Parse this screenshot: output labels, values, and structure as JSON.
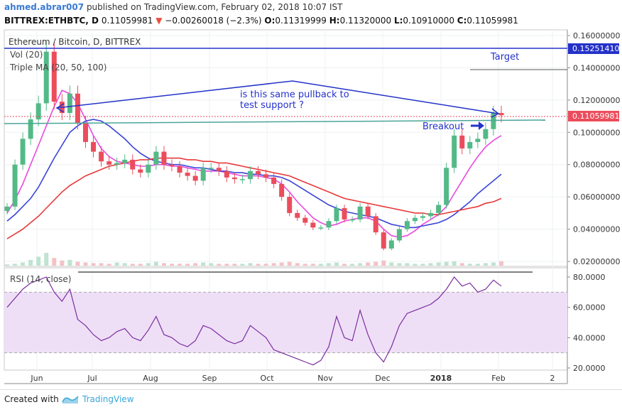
{
  "header": {
    "user": "ahmed.abrar007",
    "published_text": "published on TradingView.com, February 02, 2018 10:07 IST",
    "symbol": "BITTREX:ETHBTC, D",
    "last": "0.11059981",
    "change": "−0.00260018 (−2.3%)",
    "o_label": "O:",
    "o": "0.11319999",
    "h_label": "H:",
    "h": "0.11320000",
    "l_label": "L:",
    "l": "0.10910000",
    "c_label": "C:",
    "c": "0.11059981"
  },
  "legend": {
    "title": "Ethereum / Bitcoin, D, BITTREX",
    "vol": "Vol (20)",
    "ma": "Triple MA (20, 50, 100)",
    "rsi": "RSI (14, close)"
  },
  "annotations": {
    "target": "Target",
    "question_line1": "is this same pullback to",
    "question_line2": "test support ?",
    "breakout": "Breakout"
  },
  "price_badges": {
    "target_price": "0.15251410",
    "current_price": "0.11059981"
  },
  "colors": {
    "up": "#53b987",
    "down": "#eb4d5c",
    "ma20": "#e84ae0",
    "ma50": "#3a44d6",
    "ma100": "#e8393a",
    "rsi": "#7b2e9e",
    "annotation": "#2432c9"
  },
  "chart_data": [
    {
      "type": "line",
      "title": "Ethereum / Bitcoin, D, BITTREX",
      "x_labels": [
        "Jun",
        "Jul",
        "Aug",
        "Sep",
        "Oct",
        "Nov",
        "Dec",
        "2018",
        "Feb",
        "2"
      ],
      "y_ticks": [
        "0.16000000",
        "0.14000000",
        "0.12000000",
        "0.10000000",
        "0.08000000",
        "0.06000000",
        "0.04000000",
        "0.02000000"
      ],
      "ylim": [
        0.015,
        0.165
      ],
      "series": [
        {
          "name": "Close",
          "values": [
            0.054,
            0.08,
            0.096,
            0.108,
            0.118,
            0.15,
            0.119,
            0.112,
            0.124,
            0.106,
            0.094,
            0.088,
            0.082,
            0.08,
            0.081,
            0.083,
            0.077,
            0.075,
            0.08,
            0.088,
            0.08,
            0.079,
            0.075,
            0.073,
            0.07,
            0.078,
            0.078,
            0.076,
            0.072,
            0.071,
            0.071,
            0.076,
            0.074,
            0.072,
            0.068,
            0.06,
            0.05,
            0.047,
            0.044,
            0.041,
            0.041,
            0.045,
            0.053,
            0.046,
            0.046,
            0.054,
            0.048,
            0.038,
            0.028,
            0.033,
            0.04,
            0.045,
            0.047,
            0.048,
            0.05,
            0.055,
            0.078,
            0.098,
            0.09,
            0.094,
            0.096,
            0.102,
            0.112,
            0.1106
          ]
        },
        {
          "name": "MA20",
          "values": [
            0.05,
            0.058,
            0.068,
            0.08,
            0.092,
            0.104,
            0.116,
            0.126,
            0.124,
            0.118,
            0.108,
            0.098,
            0.09,
            0.085,
            0.082,
            0.081,
            0.08,
            0.079,
            0.079,
            0.08,
            0.08,
            0.079,
            0.079,
            0.078,
            0.077,
            0.076,
            0.076,
            0.076,
            0.075,
            0.074,
            0.073,
            0.073,
            0.073,
            0.072,
            0.071,
            0.068,
            0.063,
            0.057,
            0.052,
            0.047,
            0.044,
            0.042,
            0.043,
            0.045,
            0.046,
            0.047,
            0.047,
            0.045,
            0.04,
            0.036,
            0.035,
            0.036,
            0.039,
            0.043,
            0.046,
            0.049,
            0.054,
            0.062,
            0.07,
            0.078,
            0.085,
            0.091,
            0.095,
            0.098
          ]
        },
        {
          "name": "MA50",
          "values": [
            0.045,
            0.049,
            0.054,
            0.059,
            0.066,
            0.075,
            0.084,
            0.092,
            0.1,
            0.104,
            0.107,
            0.108,
            0.107,
            0.104,
            0.1,
            0.096,
            0.091,
            0.087,
            0.084,
            0.082,
            0.081,
            0.08,
            0.08,
            0.079,
            0.078,
            0.078,
            0.077,
            0.076,
            0.076,
            0.075,
            0.075,
            0.074,
            0.074,
            0.073,
            0.073,
            0.072,
            0.07,
            0.067,
            0.064,
            0.061,
            0.058,
            0.055,
            0.053,
            0.051,
            0.05,
            0.049,
            0.048,
            0.047,
            0.045,
            0.043,
            0.042,
            0.041,
            0.041,
            0.042,
            0.043,
            0.044,
            0.046,
            0.049,
            0.053,
            0.057,
            0.062,
            0.066,
            0.07,
            0.074
          ]
        },
        {
          "name": "MA100",
          "values": [
            0.034,
            0.037,
            0.04,
            0.044,
            0.048,
            0.053,
            0.058,
            0.063,
            0.067,
            0.07,
            0.073,
            0.075,
            0.077,
            0.079,
            0.08,
            0.081,
            0.082,
            0.083,
            0.083,
            0.084,
            0.084,
            0.084,
            0.084,
            0.083,
            0.083,
            0.082,
            0.082,
            0.081,
            0.081,
            0.08,
            0.079,
            0.078,
            0.077,
            0.076,
            0.075,
            0.074,
            0.073,
            0.071,
            0.069,
            0.067,
            0.065,
            0.063,
            0.061,
            0.059,
            0.058,
            0.057,
            0.056,
            0.055,
            0.054,
            0.053,
            0.052,
            0.051,
            0.05,
            0.05,
            0.049,
            0.049,
            0.05,
            0.051,
            0.052,
            0.053,
            0.054,
            0.056,
            0.057,
            0.059
          ]
        }
      ],
      "volume": [
        2,
        3,
        5,
        9,
        14,
        20,
        12,
        8,
        9,
        6,
        5,
        4,
        4,
        3,
        5,
        4,
        3,
        3,
        4,
        6,
        4,
        3,
        3,
        3,
        4,
        5,
        4,
        3,
        3,
        3,
        3,
        4,
        3,
        3,
        4,
        5,
        6,
        4,
        3,
        3,
        3,
        4,
        5,
        3,
        3,
        4,
        5,
        6,
        8,
        5,
        4,
        4,
        3,
        3,
        4,
        5,
        6,
        7,
        4,
        3,
        3,
        4,
        5,
        7
      ]
    },
    {
      "type": "line",
      "title": "RSI (14, close)",
      "ylim": [
        18,
        84
      ],
      "y_ticks": [
        "80.0000",
        "60.0000",
        "40.0000",
        "20.0000"
      ],
      "bands": [
        30,
        70
      ],
      "series": [
        {
          "name": "RSI",
          "values": [
            60,
            66,
            72,
            76,
            78,
            80,
            70,
            64,
            72,
            52,
            48,
            42,
            38,
            40,
            44,
            46,
            40,
            38,
            45,
            54,
            42,
            40,
            36,
            34,
            38,
            48,
            46,
            42,
            38,
            36,
            38,
            48,
            44,
            40,
            32,
            30,
            28,
            26,
            24,
            22,
            25,
            34,
            54,
            40,
            38,
            58,
            42,
            30,
            24,
            34,
            48,
            56,
            58,
            60,
            62,
            66,
            72,
            80,
            74,
            76,
            70,
            72,
            78,
            74
          ]
        }
      ]
    }
  ]
}
